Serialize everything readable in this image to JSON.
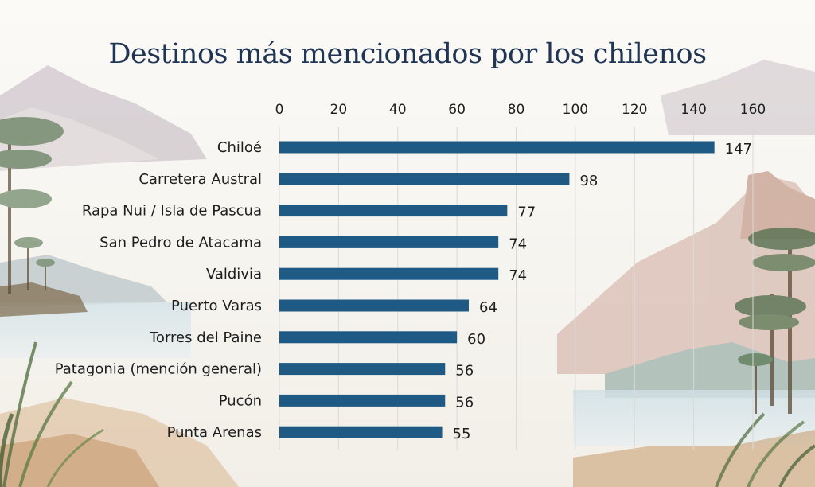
{
  "chart_data": {
    "type": "bar",
    "orientation": "horizontal",
    "title": "Destinos más mencionados por los chilenos",
    "categories": [
      "Chiloé",
      "Carretera Austral",
      "Rapa Nui / Isla de Pascua",
      "San Pedro de Atacama",
      "Valdivia",
      "Puerto Varas",
      "Torres del Paine",
      "Patagonia (mención general)",
      "Pucón",
      "Punta Arenas"
    ],
    "values": [
      147,
      98,
      77,
      74,
      74,
      64,
      60,
      56,
      56,
      55
    ],
    "xlim": [
      0,
      160
    ],
    "xticks": [
      0,
      20,
      40,
      60,
      80,
      100,
      120,
      140,
      160
    ],
    "axis_position": "top",
    "grid": true,
    "data_labels": true,
    "colors": {
      "bar": "#1f5a85",
      "title": "#1f3553",
      "grid": "#d9d9d9"
    }
  },
  "background": "illustrated chilean landscape with mountains, araucaria trees and coastline"
}
